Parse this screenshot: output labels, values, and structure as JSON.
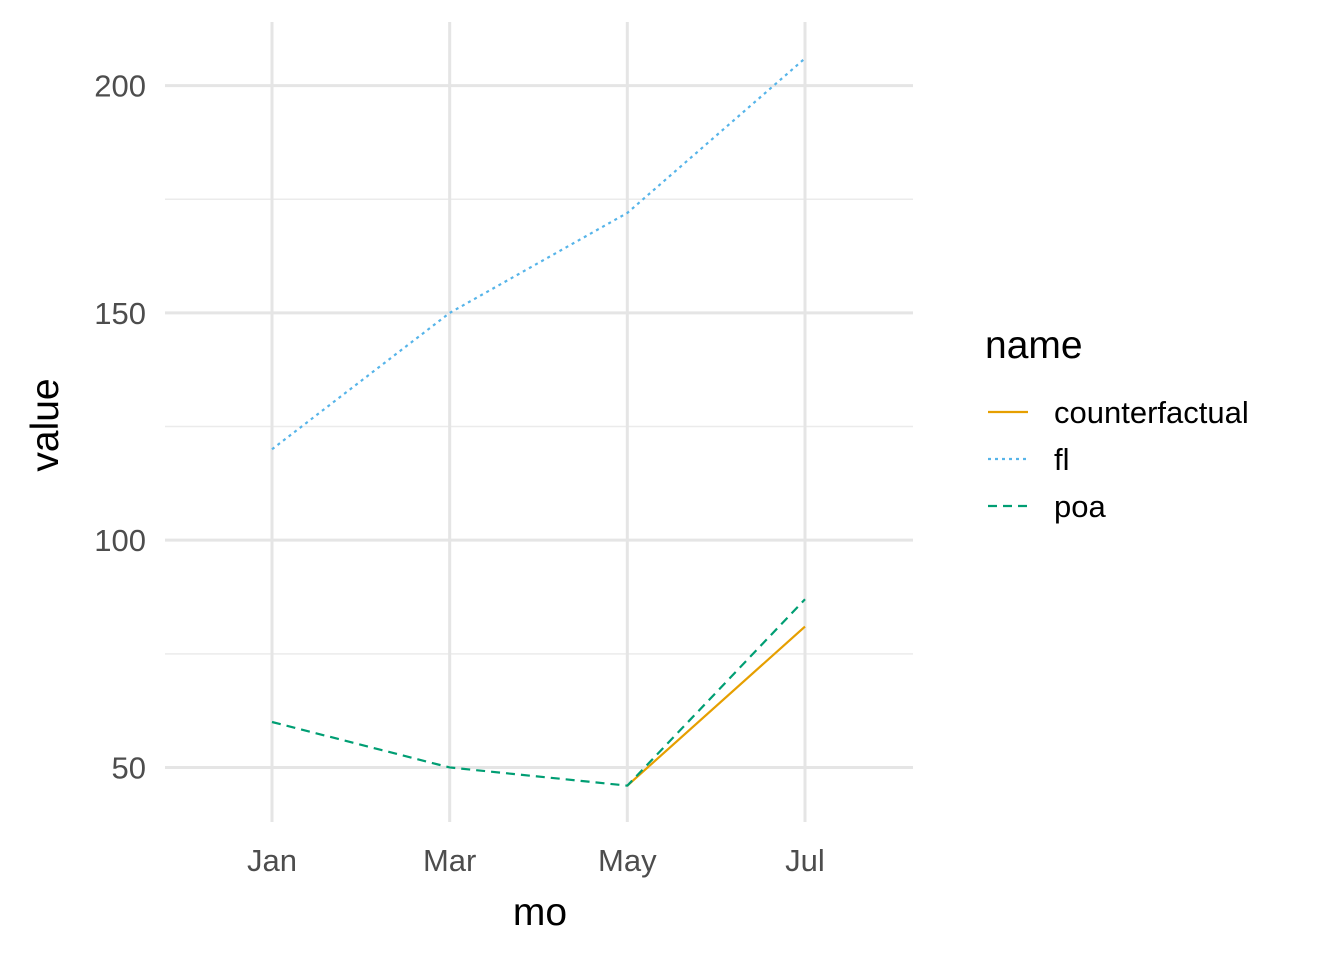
{
  "chart_data": {
    "type": "line",
    "xlabel": "mo",
    "ylabel": "value",
    "x_categories": [
      "Jan",
      "Mar",
      "May",
      "Jul"
    ],
    "ylim": [
      38,
      214
    ],
    "y_ticks": [
      50,
      100,
      150,
      200
    ],
    "y_minor_ticks": [
      75,
      125,
      175
    ],
    "grid": true,
    "legend": {
      "title": "name",
      "placement": "right"
    },
    "series": [
      {
        "name": "counterfactual",
        "color": "#E69F00",
        "linetype": "solid",
        "points": [
          {
            "x": "May",
            "y": 46
          },
          {
            "x": "Jul",
            "y": 81
          }
        ]
      },
      {
        "name": "fl",
        "color": "#56B4E9",
        "linetype": "dotted",
        "points": [
          {
            "x": "Jan",
            "y": 120
          },
          {
            "x": "Mar",
            "y": 150
          },
          {
            "x": "May",
            "y": 172
          },
          {
            "x": "Jul",
            "y": 206
          }
        ]
      },
      {
        "name": "poa",
        "color": "#009E73",
        "linetype": "dashed",
        "points": [
          {
            "x": "Jan",
            "y": 60
          },
          {
            "x": "Mar",
            "y": 50
          },
          {
            "x": "May",
            "y": 46
          },
          {
            "x": "Jul",
            "y": 87
          }
        ]
      }
    ]
  }
}
